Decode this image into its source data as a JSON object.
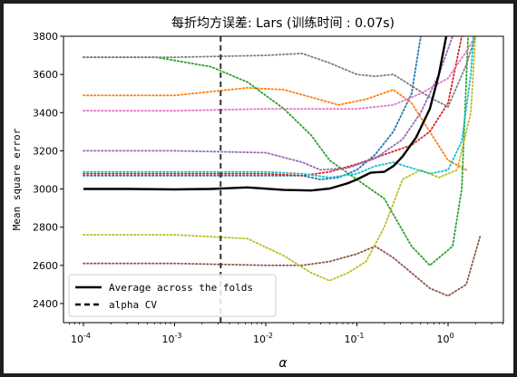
{
  "chart_data": {
    "type": "line",
    "title": "每折均方误差: Lars (训练时间 : 0.07s)",
    "xlabel": "α",
    "ylabel": "Mean square error",
    "xscale": "log-reversed",
    "xlim_exponent": [
      -4.0,
      0.6
    ],
    "ylim": [
      2300,
      3800
    ],
    "x_ticks": [
      {
        "label": "10^-4",
        "base": "10",
        "exp": "-4",
        "value": -4
      },
      {
        "label": "10^-3",
        "base": "10",
        "exp": "-3",
        "value": -3
      },
      {
        "label": "10^-2",
        "base": "10",
        "exp": "-2",
        "value": -2
      },
      {
        "label": "10^-1",
        "base": "10",
        "exp": "-1",
        "value": -1
      },
      {
        "label": "10^0",
        "base": "10",
        "exp": "0",
        "value": 0
      }
    ],
    "y_ticks": [
      2400,
      2600,
      2800,
      3000,
      3200,
      3400,
      3600,
      3800
    ],
    "alpha_cv": 0.0032,
    "legend": {
      "placement": "lower-left",
      "entries": [
        {
          "label": "Average across the folds",
          "style": "solid",
          "color": "#000000"
        },
        {
          "label": "alpha CV",
          "style": "dashed",
          "color": "#000000"
        }
      ]
    },
    "average_series": {
      "name": "Average across the folds",
      "color": "#000000",
      "points": [
        [
          -4,
          3000
        ],
        [
          -3.5,
          3000
        ],
        [
          -3,
          2998
        ],
        [
          -2.6,
          3000
        ],
        [
          -2.2,
          3008
        ],
        [
          -1.8,
          2995
        ],
        [
          -1.5,
          2992
        ],
        [
          -1.3,
          3002
        ],
        [
          -1.1,
          3030
        ],
        [
          -1.0,
          3050
        ],
        [
          -0.85,
          3085
        ],
        [
          -0.7,
          3090
        ],
        [
          -0.6,
          3120
        ],
        [
          -0.5,
          3170
        ],
        [
          -0.35,
          3270
        ],
        [
          -0.2,
          3420
        ],
        [
          -0.1,
          3600
        ],
        [
          -0.02,
          3800
        ]
      ]
    },
    "fold_series": [
      {
        "color": "#1f77b4",
        "points": [
          [
            -4,
            3070
          ],
          [
            -3,
            3070
          ],
          [
            -2,
            3070
          ],
          [
            -1.6,
            3070
          ],
          [
            -1.4,
            3050
          ],
          [
            -1.2,
            3060
          ],
          [
            -1.0,
            3100
          ],
          [
            -0.8,
            3180
          ],
          [
            -0.6,
            3300
          ],
          [
            -0.4,
            3500
          ],
          [
            -0.3,
            3800
          ]
        ]
      },
      {
        "color": "#ff7f0e",
        "points": [
          [
            -4,
            3490
          ],
          [
            -3,
            3490
          ],
          [
            -2.2,
            3530
          ],
          [
            -1.8,
            3520
          ],
          [
            -1.5,
            3480
          ],
          [
            -1.2,
            3440
          ],
          [
            -0.9,
            3470
          ],
          [
            -0.6,
            3520
          ],
          [
            -0.4,
            3450
          ],
          [
            -0.2,
            3300
          ],
          [
            0,
            3150
          ],
          [
            0.2,
            3100
          ]
        ]
      },
      {
        "color": "#2ca02c",
        "points": [
          [
            -4,
            3690
          ],
          [
            -3.2,
            3690
          ],
          [
            -2.6,
            3640
          ],
          [
            -2.2,
            3560
          ],
          [
            -1.8,
            3420
          ],
          [
            -1.5,
            3280
          ],
          [
            -1.3,
            3150
          ],
          [
            -1.0,
            3050
          ],
          [
            -0.7,
            2950
          ],
          [
            -0.4,
            2700
          ],
          [
            -0.2,
            2600
          ],
          [
            0.05,
            2700
          ],
          [
            0.15,
            3000
          ],
          [
            0.22,
            3800
          ]
        ]
      },
      {
        "color": "#d62728",
        "points": [
          [
            -4,
            3080
          ],
          [
            -3,
            3080
          ],
          [
            -2,
            3080
          ],
          [
            -1.6,
            3070
          ],
          [
            -1.3,
            3090
          ],
          [
            -1.0,
            3130
          ],
          [
            -0.7,
            3180
          ],
          [
            -0.4,
            3230
          ],
          [
            -0.2,
            3300
          ],
          [
            0,
            3450
          ],
          [
            0.15,
            3800
          ]
        ]
      },
      {
        "color": "#9467bd",
        "points": [
          [
            -4,
            3200
          ],
          [
            -3,
            3200
          ],
          [
            -2,
            3190
          ],
          [
            -1.6,
            3140
          ],
          [
            -1.4,
            3100
          ],
          [
            -1.1,
            3110
          ],
          [
            -0.8,
            3160
          ],
          [
            -0.5,
            3260
          ],
          [
            -0.3,
            3400
          ],
          [
            -0.1,
            3600
          ],
          [
            0.05,
            3800
          ]
        ]
      },
      {
        "color": "#8c564b",
        "points": [
          [
            -4,
            2610
          ],
          [
            -3,
            2610
          ],
          [
            -2,
            2600
          ],
          [
            -1.6,
            2600
          ],
          [
            -1.3,
            2620
          ],
          [
            -1.0,
            2660
          ],
          [
            -0.8,
            2700
          ],
          [
            -0.6,
            2640
          ],
          [
            -0.4,
            2560
          ],
          [
            -0.2,
            2480
          ],
          [
            0,
            2440
          ],
          [
            0.2,
            2500
          ],
          [
            0.35,
            2750
          ]
        ]
      },
      {
        "color": "#e377c2",
        "points": [
          [
            -4,
            3410
          ],
          [
            -3,
            3410
          ],
          [
            -2,
            3420
          ],
          [
            -1.4,
            3420
          ],
          [
            -1,
            3420
          ],
          [
            -0.6,
            3440
          ],
          [
            -0.3,
            3500
          ],
          [
            0,
            3580
          ],
          [
            0.2,
            3720
          ],
          [
            0.3,
            3800
          ]
        ]
      },
      {
        "color": "#7f7f7f",
        "points": [
          [
            -4,
            3690
          ],
          [
            -3,
            3690
          ],
          [
            -2,
            3700
          ],
          [
            -1.6,
            3710
          ],
          [
            -1.3,
            3660
          ],
          [
            -1.0,
            3600
          ],
          [
            -0.8,
            3590
          ],
          [
            -0.6,
            3600
          ],
          [
            -0.4,
            3540
          ],
          [
            -0.2,
            3480
          ],
          [
            0,
            3430
          ],
          [
            0.2,
            3650
          ],
          [
            0.3,
            3800
          ]
        ]
      },
      {
        "color": "#bcbd22",
        "points": [
          [
            -4,
            2760
          ],
          [
            -3,
            2760
          ],
          [
            -2.2,
            2740
          ],
          [
            -1.8,
            2650
          ],
          [
            -1.5,
            2560
          ],
          [
            -1.3,
            2520
          ],
          [
            -1.1,
            2560
          ],
          [
            -0.9,
            2620
          ],
          [
            -0.7,
            2800
          ],
          [
            -0.5,
            3050
          ],
          [
            -0.3,
            3100
          ],
          [
            -0.1,
            3060
          ],
          [
            0.1,
            3100
          ],
          [
            0.25,
            3400
          ],
          [
            0.3,
            3800
          ]
        ]
      },
      {
        "color": "#17becf",
        "points": [
          [
            -4,
            3090
          ],
          [
            -3,
            3090
          ],
          [
            -2,
            3090
          ],
          [
            -1.6,
            3080
          ],
          [
            -1.3,
            3060
          ],
          [
            -1.0,
            3080
          ],
          [
            -0.8,
            3120
          ],
          [
            -0.6,
            3140
          ],
          [
            -0.4,
            3110
          ],
          [
            -0.2,
            3080
          ],
          [
            0,
            3100
          ],
          [
            0.15,
            3250
          ],
          [
            0.25,
            3600
          ],
          [
            0.28,
            3800
          ]
        ]
      }
    ]
  }
}
